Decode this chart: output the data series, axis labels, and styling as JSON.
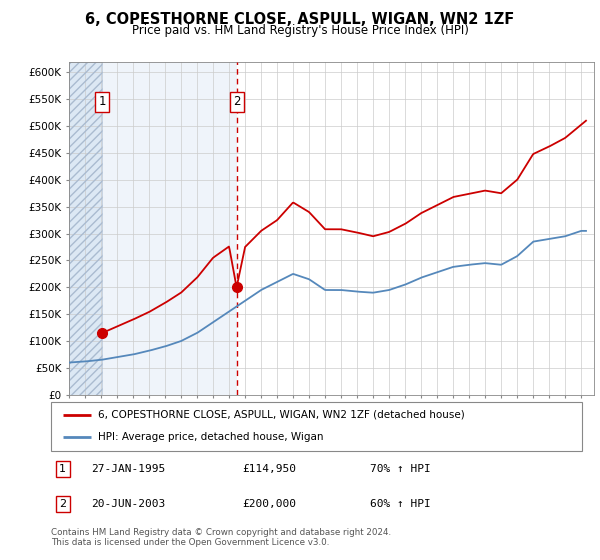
{
  "title": "6, COPESTHORNE CLOSE, ASPULL, WIGAN, WN2 1ZF",
  "subtitle": "Price paid vs. HM Land Registry's House Price Index (HPI)",
  "ylim": [
    0,
    620000
  ],
  "xlim_start": 1993.0,
  "xlim_end": 2025.8,
  "sale1_date": 1995.07,
  "sale1_price": 114950,
  "sale2_date": 2003.47,
  "sale2_price": 200000,
  "legend_line1": "6, COPESTHORNE CLOSE, ASPULL, WIGAN, WN2 1ZF (detached house)",
  "legend_line2": "HPI: Average price, detached house, Wigan",
  "footnote": "Contains HM Land Registry data © Crown copyright and database right 2024.\nThis data is licensed under the Open Government Licence v3.0.",
  "line_color_red": "#cc0000",
  "line_color_blue": "#5588bb",
  "grid_color": "#cccccc",
  "blue_kp_x": [
    1993,
    1994,
    1995,
    1996,
    1997,
    1998,
    1999,
    2000,
    2001,
    2002,
    2003,
    2004,
    2005,
    2006,
    2007,
    2008,
    2009,
    2010,
    2011,
    2012,
    2013,
    2014,
    2015,
    2016,
    2017,
    2018,
    2019,
    2020,
    2021,
    2022,
    2023,
    2024,
    2025
  ],
  "blue_kp_y": [
    60000,
    62000,
    65000,
    70000,
    75000,
    82000,
    90000,
    100000,
    115000,
    135000,
    155000,
    175000,
    195000,
    210000,
    225000,
    215000,
    195000,
    195000,
    192000,
    190000,
    195000,
    205000,
    218000,
    228000,
    238000,
    242000,
    245000,
    242000,
    258000,
    285000,
    290000,
    295000,
    305000
  ],
  "red_kp_x": [
    1995.07,
    1996,
    1997,
    1998,
    1999,
    2000,
    2001,
    2002,
    2003.0,
    2003.47,
    2004,
    2005,
    2006,
    2007,
    2008,
    2009,
    2010,
    2011,
    2012,
    2013,
    2014,
    2015,
    2016,
    2017,
    2018,
    2019,
    2020,
    2021,
    2022,
    2023,
    2024,
    2025.3
  ],
  "red_kp_y": [
    114950,
    127000,
    140000,
    154000,
    171000,
    190000,
    218000,
    255000,
    276000,
    200000,
    275000,
    305000,
    325000,
    358000,
    340000,
    308000,
    308000,
    302000,
    295000,
    303000,
    318000,
    338000,
    353000,
    368000,
    374000,
    380000,
    375000,
    400000,
    448000,
    462000,
    478000,
    510000
  ],
  "ytick_vals": [
    0,
    50000,
    100000,
    150000,
    200000,
    250000,
    300000,
    350000,
    400000,
    450000,
    500000,
    550000,
    600000
  ],
  "ytick_labels": [
    "£0",
    "£50K",
    "£100K",
    "£150K",
    "£200K",
    "£250K",
    "£300K",
    "£350K",
    "£400K",
    "£450K",
    "£500K",
    "£550K",
    "£600K"
  ]
}
